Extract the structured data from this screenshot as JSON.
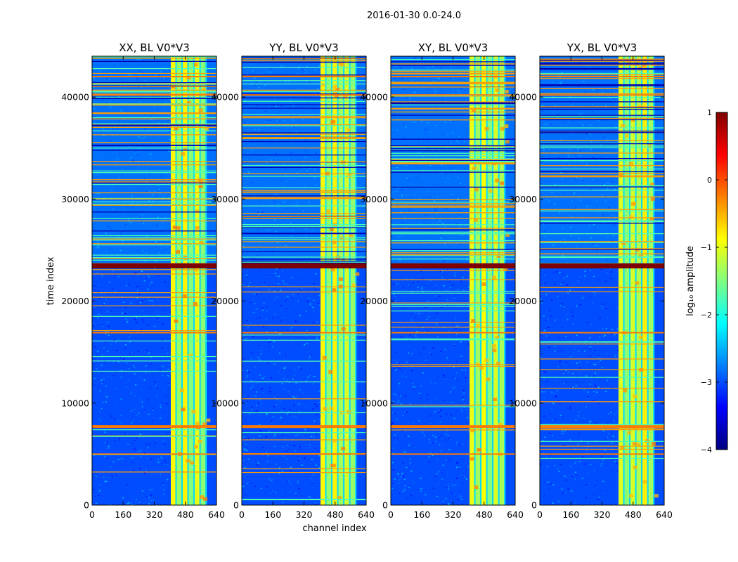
{
  "chart_data": {
    "type": "heatmap",
    "suptitle": "2016-01-30 0.0-24.0",
    "xlabel": "channel index",
    "ylabel": "time index",
    "xlim": [
      0,
      640
    ],
    "ylim": [
      0,
      44000
    ],
    "x_ticks": [
      0,
      160,
      320,
      480,
      640
    ],
    "x_tick_labels": [
      "0",
      "160",
      "320",
      "480",
      "640"
    ],
    "y_ticks": [
      0,
      10000,
      20000,
      30000,
      40000
    ],
    "y_tick_labels": [
      "0",
      "10000",
      "20000",
      "30000",
      "40000"
    ],
    "panels": [
      {
        "title": "XX, BL V0*V3"
      },
      {
        "title": "YY, BL V0*V3"
      },
      {
        "title": "XY, BL V0*V3"
      },
      {
        "title": "YX, BL V0*V3"
      }
    ],
    "colorbar": {
      "label": "log₁₀ amplitude",
      "range": [
        -4,
        1
      ],
      "ticks": [
        1,
        0,
        -1,
        -2,
        -3,
        -4
      ],
      "tick_labels": [
        "1",
        "0",
        "−1",
        "−2",
        "−3",
        "−4"
      ],
      "colormap": "jet"
    },
    "rfi_channel_band": [
      405,
      590
    ],
    "flagged_time_block": [
      23200,
      23700
    ],
    "noisy_time_range": [
      23700,
      44000
    ],
    "strong_time_lines": [
      7700,
      5000,
      16900,
      40200,
      42000
    ],
    "colors": {
      "background_low": "#0a2bff",
      "band_high": "#e8f020",
      "flag_line": "#ff7a00",
      "flag_block": "#7f0000"
    }
  }
}
